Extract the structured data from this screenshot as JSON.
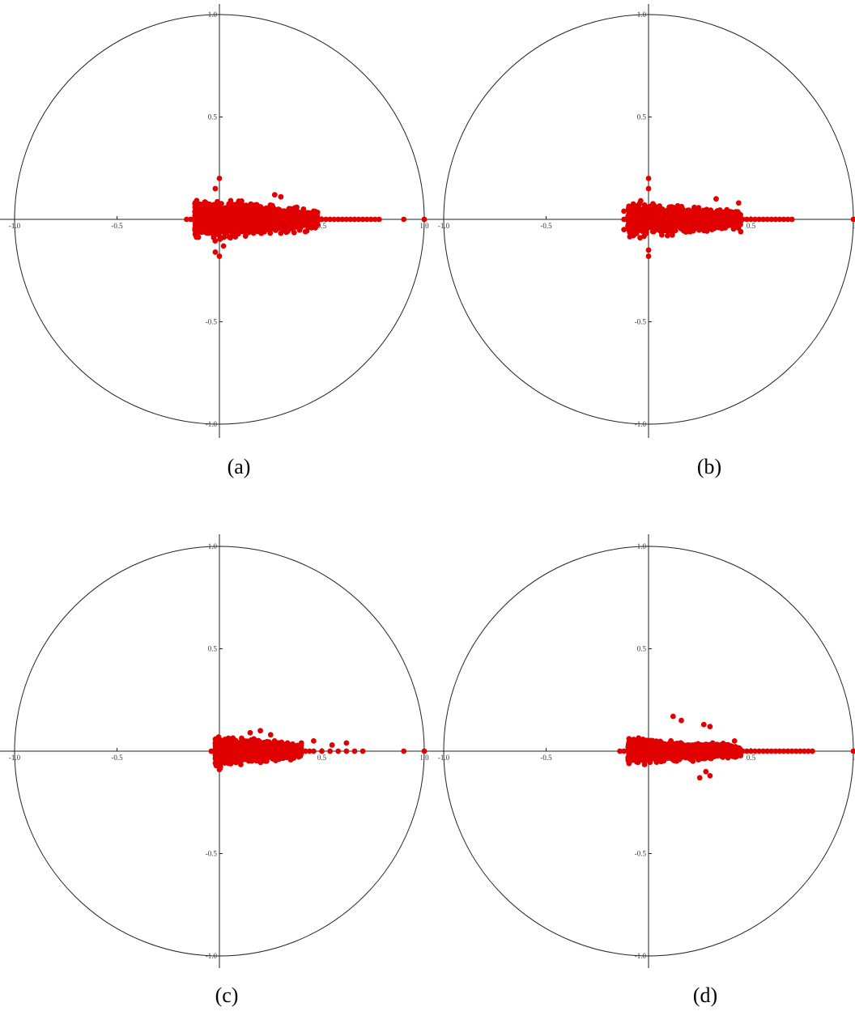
{
  "chart_data": [
    {
      "type": "scatter",
      "caption": "(a)",
      "xlim": [
        -1.0,
        1.0
      ],
      "ylim": [
        -1.0,
        1.0
      ],
      "unit_circle": true,
      "x_ticks": [
        "-1.0",
        "-0.5",
        "0.5",
        "1.0"
      ],
      "y_ticks": [
        "1.0",
        "0.5",
        "-0.5",
        "-1.0"
      ],
      "point_color": "#e00000",
      "cluster": {
        "x_min": -0.12,
        "x_max": 0.48,
        "y_spread": 0.1,
        "upper_y_max": 0.2,
        "lower_y_min": -0.2
      },
      "real_axis_points": [
        -0.16,
        -0.14,
        -0.12,
        0.5,
        0.52,
        0.54,
        0.56,
        0.58,
        0.6,
        0.62,
        0.64,
        0.66,
        0.68,
        0.7,
        0.72,
        0.74,
        0.76,
        0.78,
        0.9,
        1.0
      ],
      "outlier_points": [
        [
          0.0,
          0.2
        ],
        [
          -0.02,
          0.15
        ],
        [
          0.0,
          -0.18
        ],
        [
          -0.02,
          -0.16
        ],
        [
          0.27,
          0.12
        ],
        [
          0.3,
          0.11
        ],
        [
          0.02,
          -0.13
        ],
        [
          0.42,
          -0.06
        ],
        [
          0.46,
          0.04
        ]
      ]
    },
    {
      "type": "scatter",
      "caption": "(b)",
      "xlim": [
        -1.0,
        1.0
      ],
      "ylim": [
        -1.0,
        1.0
      ],
      "unit_circle": true,
      "x_ticks": [
        "-1.0",
        "-0.5",
        "0.5",
        "1"
      ],
      "y_ticks": [
        "1.0",
        "0.5",
        "-0.5",
        "-1.0"
      ],
      "point_color": "#e00000",
      "cluster": {
        "x_min": -0.1,
        "x_max": 0.45,
        "y_spread": 0.08,
        "upper_y_max": 0.2,
        "lower_y_min": -0.2
      },
      "real_axis_points": [
        -0.12,
        0.46,
        0.48,
        0.5,
        0.52,
        0.54,
        0.56,
        0.58,
        0.6,
        0.62,
        0.64,
        0.66,
        0.68,
        0.7,
        1.0
      ],
      "outlier_points": [
        [
          0.0,
          0.2
        ],
        [
          0.0,
          0.15
        ],
        [
          0.0,
          -0.18
        ],
        [
          0.0,
          -0.15
        ],
        [
          -0.12,
          0.04
        ],
        [
          -0.12,
          -0.05
        ],
        [
          0.33,
          0.1
        ],
        [
          0.44,
          0.08
        ],
        [
          0.45,
          -0.06
        ]
      ]
    },
    {
      "type": "scatter",
      "caption": "(c)",
      "xlim": [
        -1.0,
        1.0
      ],
      "ylim": [
        -1.0,
        1.0
      ],
      "unit_circle": true,
      "x_ticks": [
        "-1.0",
        "-0.5",
        "0.5",
        "1.0"
      ],
      "y_ticks": [
        "1.0",
        "0.5",
        "-0.5",
        "-1.0"
      ],
      "point_color": "#e00000",
      "cluster": {
        "x_min": -0.02,
        "x_max": 0.4,
        "y_spread": 0.07,
        "upper_y_max": 0.1,
        "lower_y_min": -0.1
      },
      "real_axis_points": [
        -0.04,
        0.42,
        0.44,
        0.46,
        0.5,
        0.54,
        0.58,
        0.62,
        0.66,
        0.7,
        0.9,
        1.0
      ],
      "outlier_points": [
        [
          0.0,
          -0.09
        ],
        [
          0.15,
          0.09
        ],
        [
          0.2,
          0.1
        ],
        [
          0.25,
          0.08
        ],
        [
          0.4,
          0.04
        ],
        [
          0.46,
          0.05
        ],
        [
          0.55,
          0.03
        ],
        [
          0.62,
          0.04
        ]
      ]
    },
    {
      "type": "scatter",
      "caption": "(d)",
      "xlim": [
        -1.0,
        1.0
      ],
      "ylim": [
        -1.0,
        1.0
      ],
      "unit_circle": true,
      "x_ticks": [
        "-1.0",
        "-0.5",
        "0.5",
        "1"
      ],
      "y_ticks": [
        "1.0",
        "0.5",
        "-0.5",
        "-1.0"
      ],
      "point_color": "#e00000",
      "cluster": {
        "x_min": -0.1,
        "x_max": 0.45,
        "y_spread": 0.06,
        "upper_y_max": 0.17,
        "lower_y_min": -0.13
      },
      "real_axis_points": [
        -0.14,
        -0.12,
        0.46,
        0.48,
        0.5,
        0.52,
        0.54,
        0.56,
        0.58,
        0.6,
        0.62,
        0.64,
        0.66,
        0.68,
        0.7,
        0.72,
        0.74,
        0.76,
        0.78,
        0.8,
        1.0
      ],
      "outlier_points": [
        [
          0.12,
          0.17
        ],
        [
          0.16,
          0.15
        ],
        [
          0.27,
          0.13
        ],
        [
          0.3,
          0.12
        ],
        [
          0.28,
          -0.1
        ],
        [
          0.25,
          -0.13
        ],
        [
          0.3,
          -0.12
        ],
        [
          0.42,
          0.05
        ]
      ]
    }
  ]
}
